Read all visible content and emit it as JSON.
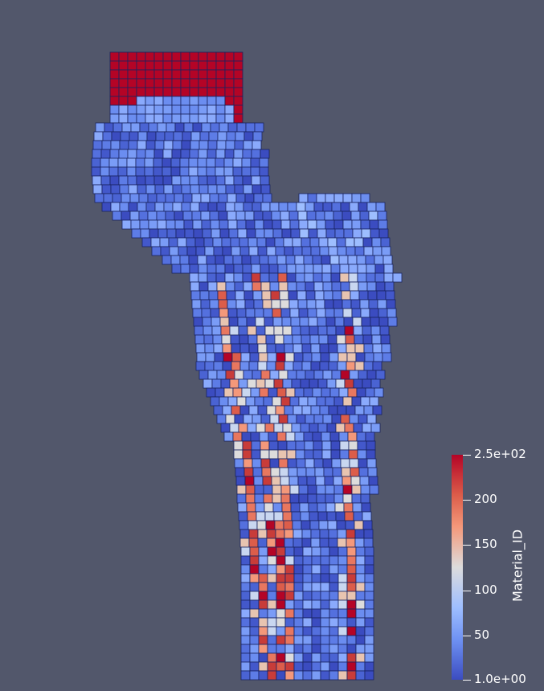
{
  "scalar_bar": {
    "title": "Material_ID",
    "ticks": [
      {
        "label": "2.5e+02",
        "value": 250
      },
      {
        "label": "200",
        "value": 200
      },
      {
        "label": "150",
        "value": 150
      },
      {
        "label": "100",
        "value": 100
      },
      {
        "label": "50",
        "value": 50
      },
      {
        "label": "1.0e+00",
        "value": 1
      }
    ],
    "range": [
      1,
      250
    ],
    "colormap": [
      "#3b4cc0",
      "#6f92f3",
      "#9ebeff",
      "#dddcdc",
      "#f4987a",
      "#dc5d4a",
      "#b40426"
    ]
  },
  "scene": {
    "background_color": "#52576b",
    "edge_color": "#1a2460",
    "object": "voxel-bone-mesh"
  }
}
